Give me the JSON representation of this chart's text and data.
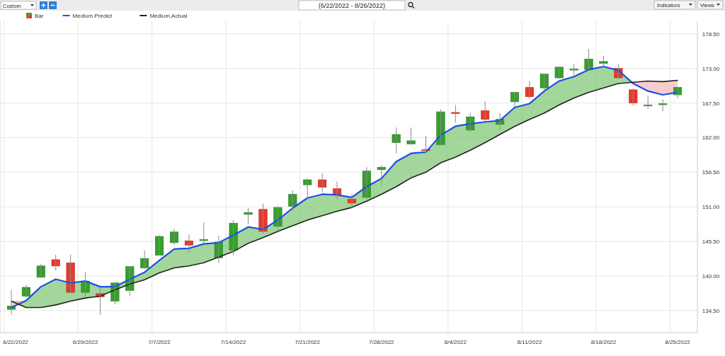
{
  "chart_data": {
    "type": "candlestick",
    "title": "(6/22/2022 - 8/26/2022)",
    "annotations": [
      "Custom",
      "Indicators",
      "Views"
    ],
    "categories": [
      "6/22/2022",
      null,
      null,
      null,
      null,
      "6/29/2022",
      null,
      null,
      null,
      null,
      "7/7/2022",
      null,
      null,
      null,
      null,
      "7/14/2022",
      null,
      null,
      null,
      null,
      "7/21/2022",
      null,
      null,
      null,
      null,
      "7/28/2022",
      null,
      null,
      null,
      null,
      "8/4/2022",
      null,
      null,
      null,
      null,
      "8/11/2022",
      null,
      null,
      null,
      null,
      "8/18/2022",
      null,
      null,
      null,
      null,
      "8/25/2022"
    ],
    "series": [
      {
        "name": "Bar",
        "ohlc": [
          [
            134.7,
            137.8,
            133.9,
            135.2
          ],
          [
            136.8,
            138.6,
            136.6,
            138.2
          ],
          [
            139.8,
            141.9,
            139.7,
            141.6
          ],
          [
            142.6,
            143.4,
            140.9,
            141.6
          ],
          [
            142.1,
            143.4,
            137.3,
            137.4
          ],
          [
            137.4,
            140.6,
            136.7,
            139.2
          ],
          [
            137.2,
            138.2,
            133.8,
            136.7
          ],
          [
            136.0,
            138.9,
            135.5,
            138.9
          ],
          [
            137.7,
            141.5,
            136.8,
            141.5
          ],
          [
            141.3,
            144.1,
            141.1,
            142.8
          ],
          [
            143.3,
            146.5,
            143.3,
            146.3
          ],
          [
            145.3,
            147.5,
            145.0,
            147.0
          ],
          [
            145.6,
            146.6,
            143.7,
            144.9
          ],
          [
            145.7,
            148.5,
            145.2,
            145.8
          ],
          [
            142.9,
            146.4,
            142.1,
            145.4
          ],
          [
            144.1,
            148.9,
            143.3,
            148.4
          ],
          [
            149.8,
            150.8,
            148.2,
            150.1
          ],
          [
            150.6,
            151.5,
            146.8,
            147.1
          ],
          [
            147.9,
            151.1,
            147.1,
            150.9
          ],
          [
            151.1,
            153.6,
            150.4,
            153.0
          ],
          [
            154.5,
            155.5,
            152.3,
            155.3
          ],
          [
            155.3,
            156.3,
            153.3,
            154.1
          ],
          [
            153.9,
            155.0,
            152.2,
            152.9
          ],
          [
            152.2,
            153.1,
            150.8,
            151.6
          ],
          [
            152.5,
            157.3,
            152.2,
            156.7
          ],
          [
            156.9,
            157.6,
            154.4,
            157.3
          ],
          [
            161.2,
            163.6,
            159.5,
            162.5
          ],
          [
            161.0,
            163.6,
            160.9,
            161.5
          ],
          [
            160.1,
            162.3,
            159.6,
            160.0
          ],
          [
            160.9,
            166.5,
            160.8,
            166.1
          ],
          [
            166.0,
            167.2,
            164.4,
            165.9
          ],
          [
            163.2,
            165.9,
            163.0,
            165.3
          ],
          [
            166.3,
            167.8,
            164.2,
            164.9
          ],
          [
            164.1,
            165.9,
            163.2,
            164.9
          ],
          [
            167.7,
            169.3,
            166.9,
            169.2
          ],
          [
            170.0,
            171.0,
            168.2,
            168.5
          ],
          [
            169.9,
            172.1,
            169.4,
            172.1
          ],
          [
            171.5,
            173.3,
            171.3,
            173.2
          ],
          [
            172.8,
            173.7,
            171.9,
            172.9
          ],
          [
            172.8,
            176.1,
            172.6,
            174.5
          ],
          [
            173.8,
            175.0,
            173.1,
            174.1
          ],
          [
            173.0,
            173.7,
            171.3,
            171.5
          ],
          [
            169.6,
            169.8,
            167.1,
            167.5
          ],
          [
            167.1,
            168.7,
            166.6,
            167.2
          ],
          [
            167.3,
            168.1,
            166.2,
            167.4
          ],
          [
            168.8,
            170.1,
            168.3,
            170.0
          ]
        ]
      },
      {
        "name": "Medium.Predict",
        "type": "line",
        "color": "#1f4fe8",
        "values": [
          135.0,
          136.1,
          138.3,
          139.5,
          138.9,
          139.2,
          138.3,
          138.3,
          139.5,
          140.6,
          142.5,
          144.3,
          144.4,
          145.1,
          145.3,
          146.5,
          147.8,
          147.4,
          148.9,
          150.8,
          152.4,
          153.0,
          152.9,
          152.5,
          154.2,
          155.5,
          158.2,
          159.5,
          159.7,
          162.4,
          163.8,
          164.2,
          164.5,
          164.7,
          166.8,
          167.4,
          169.4,
          171.0,
          171.7,
          172.8,
          173.3,
          172.7,
          170.6,
          169.4,
          168.8,
          169.2
        ]
      },
      {
        "name": "Medium.Actual",
        "type": "line",
        "color": "#222222",
        "values": [
          136.0,
          135.0,
          135.0,
          135.4,
          136.0,
          136.5,
          136.8,
          137.8,
          138.7,
          139.4,
          140.5,
          141.3,
          141.6,
          142.1,
          143.0,
          143.9,
          145.2,
          146.1,
          147.1,
          148.0,
          148.9,
          149.6,
          150.3,
          150.9,
          151.9,
          153.0,
          154.2,
          155.6,
          156.5,
          158.0,
          158.9,
          160.0,
          161.2,
          162.5,
          163.8,
          164.9,
          165.9,
          167.2,
          168.3,
          169.2,
          169.9,
          170.6,
          170.8,
          171.0,
          170.9,
          171.1
        ]
      }
    ],
    "ylim": [
      131,
      180.5
    ],
    "yticks": [
      {
        "value": 134.5,
        "label": "134.50"
      },
      {
        "value": 140,
        "label": "140.00"
      },
      {
        "value": 145.5,
        "label": "145.50"
      },
      {
        "value": 151,
        "label": "151.00"
      },
      {
        "value": 156.5,
        "label": "156.50"
      },
      {
        "value": 162,
        "label": "162.00"
      },
      {
        "value": 167.5,
        "label": "167.50"
      },
      {
        "value": 173,
        "label": "173.00"
      },
      {
        "value": 178.5,
        "label": "178.50"
      }
    ],
    "grid": true,
    "legend": "top left"
  }
}
